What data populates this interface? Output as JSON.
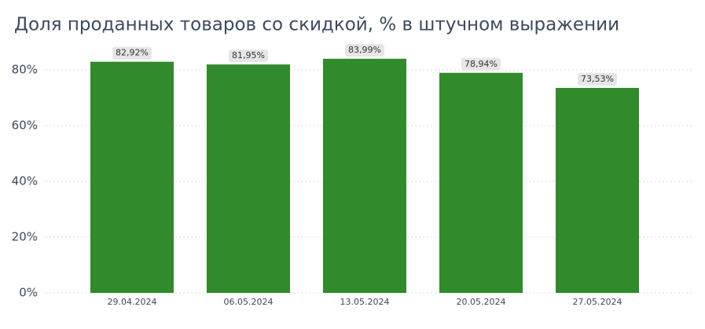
{
  "chart_data": {
    "type": "bar",
    "title": "Доля проданных товаров со скидкой, % в штучном выражении",
    "categories": [
      "29.04.2024",
      "06.05.2024",
      "13.05.2024",
      "20.05.2024",
      "27.05.2024"
    ],
    "values": [
      82.92,
      81.95,
      83.99,
      78.94,
      73.53
    ],
    "value_labels": [
      "82,92%",
      "81,95%",
      "83,99%",
      "78,94%",
      "73,53%"
    ],
    "color": "#318a2b",
    "ylim": [
      0,
      90
    ],
    "yticks": [
      {
        "value": 0,
        "label": "0%"
      },
      {
        "value": 20,
        "label": "20%"
      },
      {
        "value": 40,
        "label": "40%"
      },
      {
        "value": 60,
        "label": "60%"
      },
      {
        "value": 80,
        "label": "80%"
      }
    ],
    "grid": true
  }
}
